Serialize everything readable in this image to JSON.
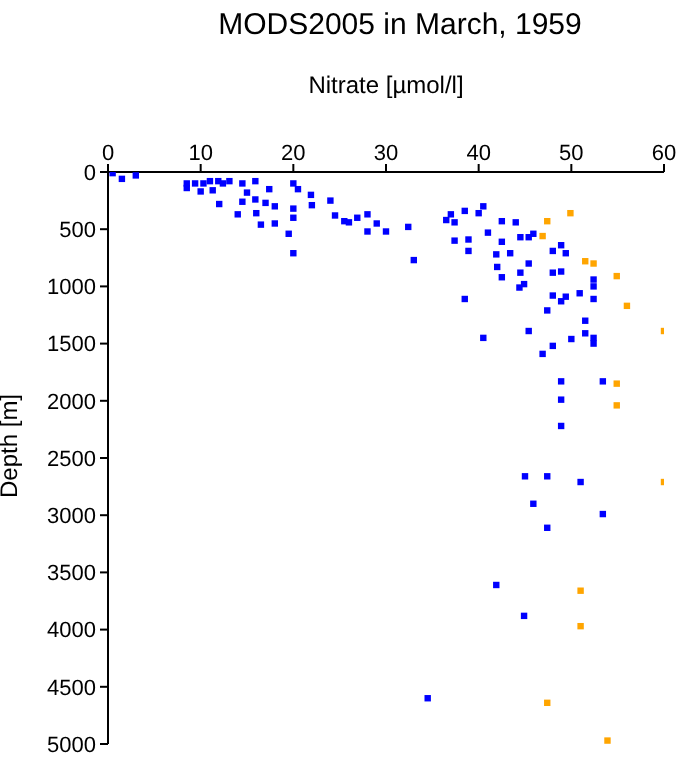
{
  "chart_data": {
    "type": "scatter",
    "title": "MODS2005 in March, 1959",
    "xlabel": "Nitrate [µmol/l]",
    "ylabel": "Depth [m]",
    "xlim": [
      0,
      60
    ],
    "xticks": [
      0,
      10,
      20,
      30,
      40,
      50,
      60
    ],
    "ylim": [
      5000,
      0
    ],
    "yticks": [
      0,
      500,
      1000,
      1500,
      2000,
      2500,
      3000,
      3500,
      4000,
      4500,
      5000
    ],
    "grid": false,
    "legend": false,
    "marker": "square",
    "series": [
      {
        "color": "#0000ff",
        "x": [
          0.5,
          1.5,
          3,
          8.5,
          8.5,
          9.4,
          10.3,
          10,
          11,
          11.3,
          11.9,
          12.4,
          13.1,
          12,
          14.5,
          14.5,
          14,
          15,
          15.9,
          15.9,
          16.5,
          16,
          17,
          17.4,
          18,
          18,
          20,
          20.5,
          20,
          20,
          19.5,
          20,
          21.9,
          22,
          24,
          24.5,
          25.5,
          26,
          26.9,
          28,
          28,
          29,
          30,
          32.4,
          33,
          36.5,
          37,
          37.4,
          37.4,
          38.5,
          38.9,
          38.9,
          40,
          40.5,
          41,
          42.5,
          42.5,
          41.9,
          42,
          43.4,
          42.5,
          44,
          44.5,
          44.5,
          44.9,
          44.4,
          45.4,
          45.9,
          45.4,
          48,
          48,
          48,
          47.4,
          48.9,
          48.9,
          48.9,
          49.4,
          49.4,
          50.9,
          52.4,
          52.4,
          52.4,
          51.5,
          51.5,
          52.4,
          52.4,
          45.4,
          40.5,
          50,
          48,
          46.9,
          48.9,
          53.4,
          48.9,
          48.9,
          38.5,
          45,
          47.4,
          51,
          45.9,
          53.4,
          47.4,
          41.9,
          44.9,
          34.5
        ],
        "values": [
          10,
          60,
          30,
          100,
          140,
          100,
          100,
          170,
          80,
          160,
          80,
          100,
          80,
          280,
          100,
          260,
          370,
          180,
          80,
          240,
          460,
          360,
          270,
          150,
          300,
          450,
          100,
          150,
          320,
          400,
          540,
          710,
          200,
          290,
          250,
          380,
          430,
          440,
          400,
          370,
          520,
          450,
          520,
          480,
          770,
          420,
          370,
          440,
          600,
          340,
          590,
          690,
          360,
          300,
          530,
          430,
          610,
          720,
          830,
          710,
          920,
          440,
          570,
          880,
          980,
          1010,
          570,
          540,
          800,
          690,
          880,
          1080,
          1210,
          640,
          870,
          1130,
          710,
          1090,
          1060,
          940,
          1000,
          1110,
          1300,
          1410,
          1450,
          1500,
          1390,
          1450,
          1460,
          1520,
          1590,
          1830,
          1830,
          1990,
          2220,
          1110,
          2660,
          2660,
          2710,
          2900,
          2990,
          3110,
          3610,
          3880,
          4600
        ]
      },
      {
        "color": "#ffa500",
        "x": [
          47.4,
          49.9,
          46.9,
          51.5,
          52.4,
          54.9,
          56,
          60,
          54.9,
          54.9,
          60,
          51,
          51,
          47.4,
          53.9
        ],
        "values": [
          430,
          360,
          560,
          780,
          800,
          910,
          1170,
          1390,
          1850,
          2040,
          2710,
          3660,
          3970,
          4640,
          4970
        ]
      }
    ]
  }
}
